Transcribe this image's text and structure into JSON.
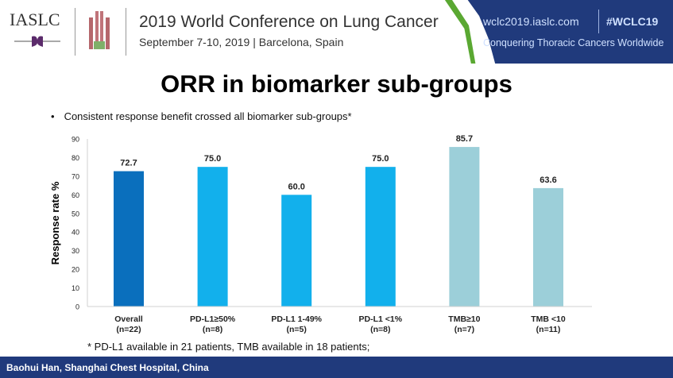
{
  "header": {
    "logo": "IASLC",
    "conference_title": "2019 World Conference on Lung Cancer",
    "conference_subtitle": "September 7-10, 2019 | Barcelona, Spain",
    "url": "wclc2019.iaslc.com",
    "hashtag": "#WCLC19",
    "tagline": "Conquering Thoracic Cancers Worldwide"
  },
  "slide": {
    "title": "ORR in biomarker sub-groups",
    "bullet": "Consistent response benefit crossed all biomarker sub-groups*",
    "footnote": "* PD-L1 available in 21 patients, TMB available in 18 patients;"
  },
  "footer": {
    "author": "Baohui Han, Shanghai Chest Hospital, China"
  },
  "chart_data": {
    "type": "bar",
    "title": "",
    "xlabel": "",
    "ylabel": "Response rate %",
    "ylim": [
      0,
      90
    ],
    "yticks": [
      0,
      10,
      20,
      30,
      40,
      50,
      60,
      70,
      80,
      90
    ],
    "grid": false,
    "categories": [
      "Overall",
      "PD-L1≥50%",
      "PD-L1 1-49%",
      "PD-L1 <1%",
      "TMB≥10",
      "TMB <10"
    ],
    "n_labels": [
      "(n=22)",
      "(n=8)",
      "(n=5)",
      "(n=8)",
      "(n=7)",
      "(n=11)"
    ],
    "values": [
      72.7,
      75.0,
      60.0,
      75.0,
      85.7,
      63.6
    ],
    "data_labels": [
      "72.7",
      "75.0",
      "60.0",
      "75.0",
      "85.7",
      "63.6"
    ],
    "colors": [
      "#0a6fbd",
      "#12b0ec",
      "#12b0ec",
      "#12b0ec",
      "#9ccfd9",
      "#9ccfd9"
    ]
  }
}
